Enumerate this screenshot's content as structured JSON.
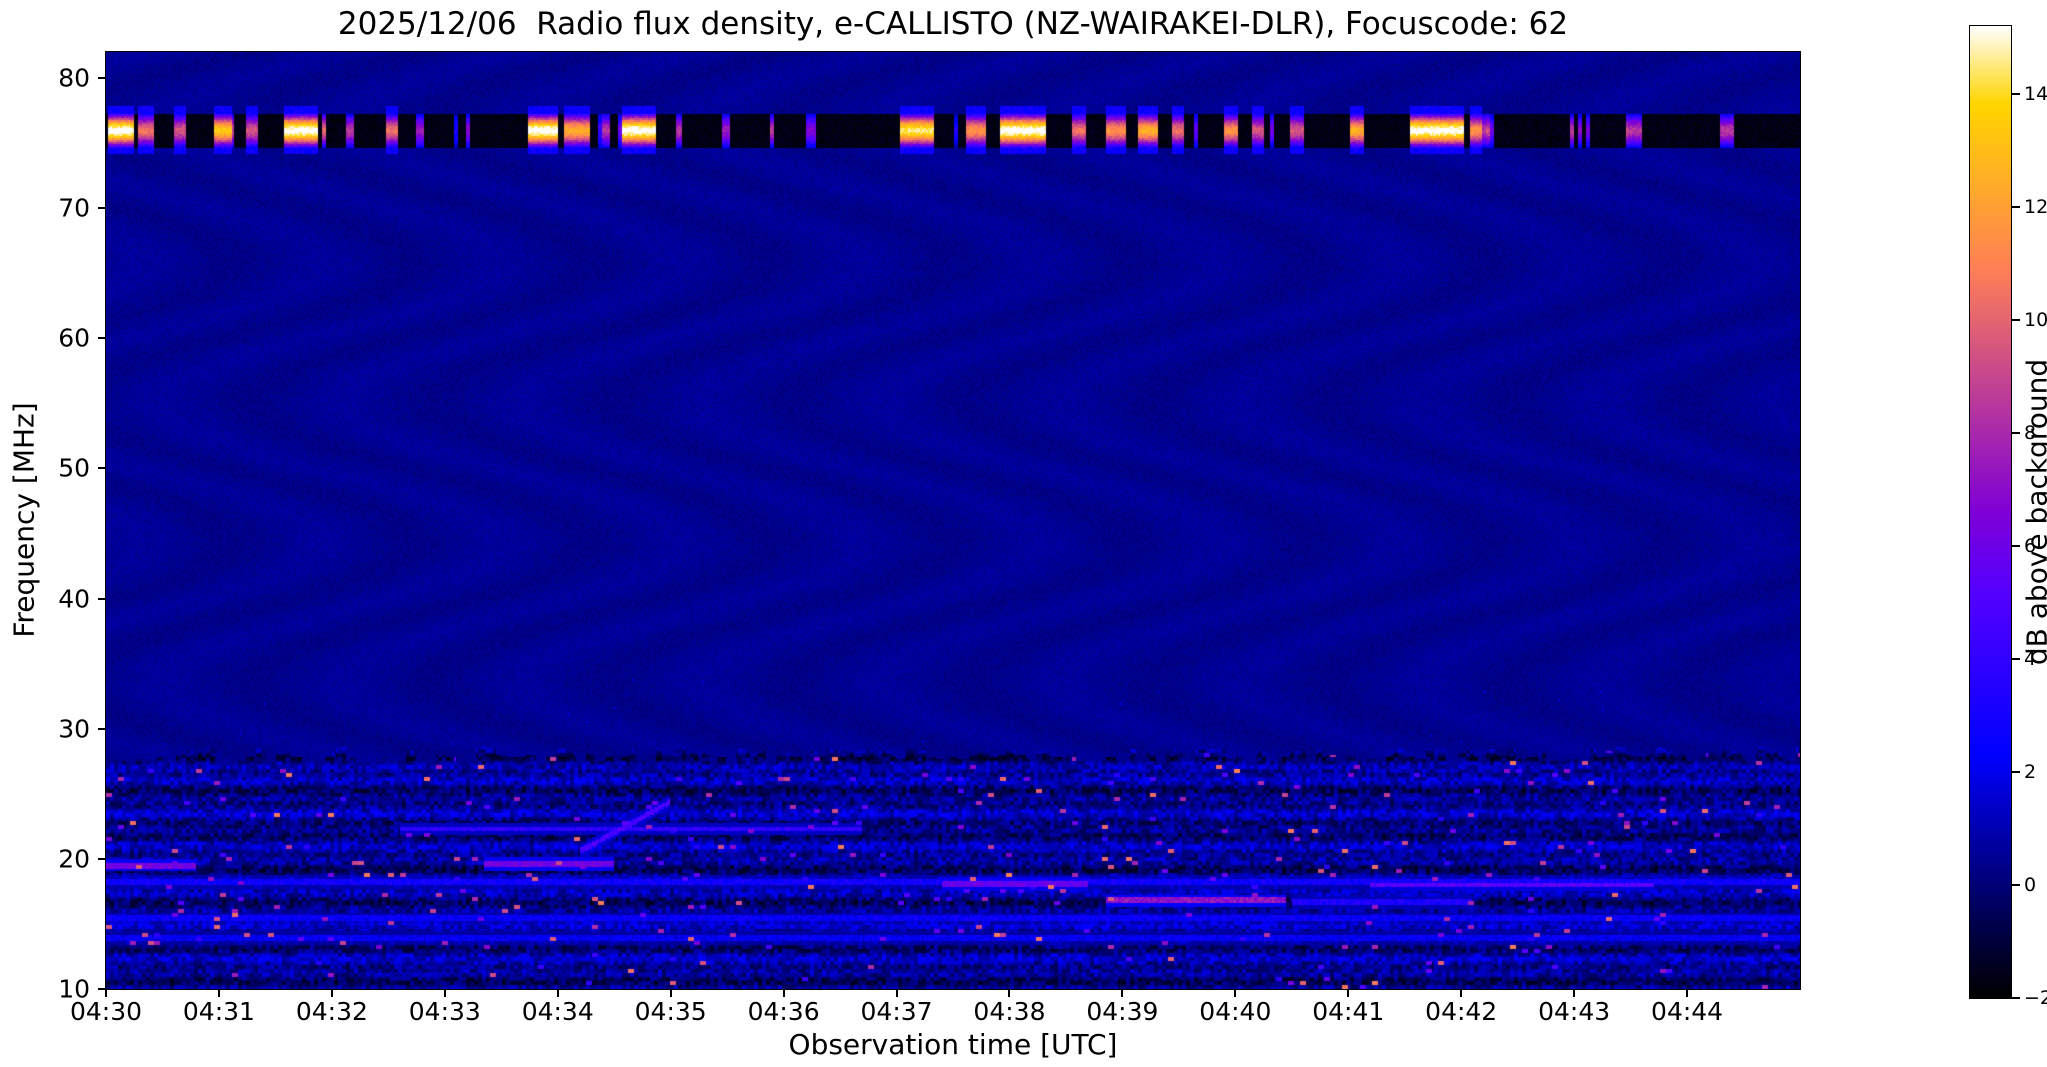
{
  "meta": {
    "date": "2025/12/06",
    "instrument": "e-CALLISTO (NZ-WAIRAKEI-DLR)",
    "focuscode": "62"
  },
  "chart_data": {
    "type": "heatmap",
    "title": "2025/12/06  Radio flux density, e-CALLISTO (NZ-WAIRAKEI-DLR), Focuscode: 62",
    "xlabel": "Observation time [UTC]",
    "ylabel": "Frequency [MHz]",
    "x_start_utc": "04:30",
    "x_range_minutes": [
      0,
      15
    ],
    "x_ticks": [
      {
        "label": "04:30",
        "minute": 0
      },
      {
        "label": "04:31",
        "minute": 1
      },
      {
        "label": "04:32",
        "minute": 2
      },
      {
        "label": "04:33",
        "minute": 3
      },
      {
        "label": "04:34",
        "minute": 4
      },
      {
        "label": "04:35",
        "minute": 5
      },
      {
        "label": "04:36",
        "minute": 6
      },
      {
        "label": "04:37",
        "minute": 7
      },
      {
        "label": "04:38",
        "minute": 8
      },
      {
        "label": "04:39",
        "minute": 9
      },
      {
        "label": "04:40",
        "minute": 10
      },
      {
        "label": "04:41",
        "minute": 11
      },
      {
        "label": "04:42",
        "minute": 12
      },
      {
        "label": "04:43",
        "minute": 13
      },
      {
        "label": "04:44",
        "minute": 14
      }
    ],
    "y_range_mhz": [
      10,
      82
    ],
    "y_ticks": [
      10,
      20,
      30,
      40,
      50,
      60,
      70,
      80
    ],
    "grid": false,
    "colorbar": {
      "label": "dB above background",
      "min": -2,
      "max": 15.2,
      "ticks": [
        -2,
        0,
        2,
        4,
        6,
        8,
        10,
        12,
        14
      ],
      "colormap": "gnuplot2"
    },
    "features": {
      "background_db": 0.45,
      "rfi_band": {
        "freq_mhz": [
          74.6,
          77.3
        ],
        "center_mhz": 75.95,
        "base_level_db": -1.9,
        "bursts_min": [
          [
            0.02,
            0.25,
            15
          ],
          [
            0.28,
            0.42,
            10
          ],
          [
            0.6,
            0.7,
            9
          ],
          [
            0.95,
            1.12,
            13
          ],
          [
            1.24,
            1.35,
            9
          ],
          [
            1.58,
            1.88,
            15
          ],
          [
            2.13,
            2.2,
            8
          ],
          [
            2.48,
            2.58,
            10
          ],
          [
            2.75,
            2.82,
            7
          ],
          [
            3.73,
            4.0,
            15
          ],
          [
            4.05,
            4.28,
            12
          ],
          [
            4.4,
            4.46,
            8
          ],
          [
            4.57,
            4.87,
            15
          ],
          [
            5.04,
            5.1,
            8
          ],
          [
            5.45,
            5.52,
            7
          ],
          [
            6.2,
            6.28,
            6
          ],
          [
            7.03,
            7.33,
            14
          ],
          [
            7.62,
            7.8,
            11
          ],
          [
            7.91,
            8.32,
            15
          ],
          [
            8.56,
            8.68,
            10
          ],
          [
            8.85,
            9.03,
            11
          ],
          [
            9.14,
            9.32,
            12
          ],
          [
            9.44,
            9.55,
            10
          ],
          [
            9.9,
            10.02,
            11
          ],
          [
            10.14,
            10.26,
            9
          ],
          [
            10.49,
            10.61,
            9
          ],
          [
            11.02,
            11.14,
            12
          ],
          [
            11.55,
            12.02,
            15
          ],
          [
            12.07,
            12.19,
            11
          ],
          [
            13.48,
            13.6,
            8
          ],
          [
            14.3,
            14.42,
            8
          ]
        ]
      },
      "noisy_band": {
        "freq_mhz": [
          10,
          28.6
        ],
        "base_range_db": [
          -2,
          2.2
        ],
        "speckle_db": [
          3.5,
          11
        ],
        "speckle_density": 0.022
      },
      "lines": [
        {
          "t": [
            0,
            15
          ],
          "f": [
            18.2,
            18.2
          ],
          "db": 2.6
        },
        {
          "t": [
            7.4,
            8.7
          ],
          "f": [
            18.1,
            18.1
          ],
          "db": 5.5
        },
        {
          "t": [
            11.2,
            13.7
          ],
          "f": [
            18.0,
            18.0
          ],
          "db": 5.0
        },
        {
          "t": [
            8.85,
            10.45
          ],
          "f": [
            16.8,
            16.8
          ],
          "db": 7.0
        },
        {
          "t": [
            10.5,
            12.1
          ],
          "f": [
            16.7,
            16.7
          ],
          "db": 3.0
        },
        {
          "t": [
            2.6,
            6.7
          ],
          "f": [
            22.3,
            22.3
          ],
          "db": 3.6
        },
        {
          "t": [
            0.0,
            0.8
          ],
          "f": [
            19.5,
            19.5
          ],
          "db": 6.0
        },
        {
          "t": [
            3.35,
            4.5
          ],
          "f": [
            19.6,
            19.6
          ],
          "db": 6.0
        },
        {
          "t": [
            4.2,
            5.0
          ],
          "f": [
            20.6,
            24.4
          ],
          "db": 4.5
        },
        {
          "t": [
            0,
            15
          ],
          "f": [
            15.4,
            15.4
          ],
          "db": 2.2
        },
        {
          "t": [
            0,
            15
          ],
          "f": [
            13.9,
            13.9
          ],
          "db": 2.0
        }
      ]
    }
  }
}
